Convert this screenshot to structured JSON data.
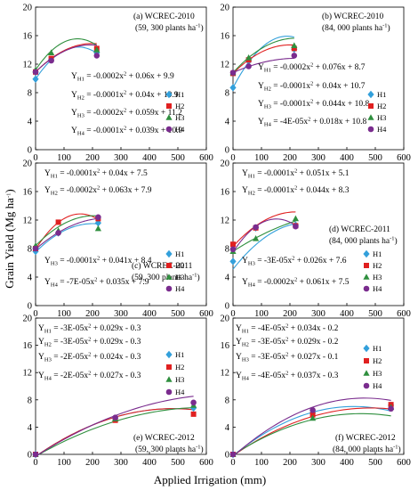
{
  "figure": {
    "xlabel": "Applied Irrigation (mm)",
    "ylabel": "Grain Yield (Mg ha-1)"
  },
  "colors": {
    "H1": "#33a0db",
    "H2": "#e02020",
    "H3": "#2f8f3e",
    "H4": "#7a2c8e"
  },
  "chart_data": [
    {
      "type": "scatter",
      "panel": "a",
      "title": "(a) WCREC-2010",
      "subtitle": "(59, 300 plants ha-1)",
      "xlim": [
        0,
        600
      ],
      "ylim": [
        0,
        20
      ],
      "xticks": [
        0,
        100,
        200,
        300,
        400,
        500,
        600
      ],
      "yticks": [
        0,
        4,
        8,
        12,
        16,
        20
      ],
      "legend_placement": "bottom-right",
      "equations": [
        "Y_H1 = -0.0002x2 + 0.06x + 9.9",
        "Y_H2 = -0.0001x2 + 0.04x + 10.9",
        "Y_H3 = -0.0002x2 + 0.059x + 11.2",
        "Y_H4 = -0.0001x2 + 0.039x + 10.9"
      ],
      "series": [
        {
          "name": "H1",
          "points": [
            [
              0,
              9.9
            ],
            [
              55,
              12.6
            ],
            [
              215,
              13.6
            ]
          ],
          "coef": [
            -0.0002,
            0.06,
            9.9
          ],
          "fit_range": [
            0,
            215
          ]
        },
        {
          "name": "H2",
          "points": [
            [
              0,
              10.9
            ],
            [
              55,
              12.8
            ],
            [
              215,
              14.2
            ]
          ],
          "coef": [
            -0.0001,
            0.04,
            10.9
          ],
          "fit_range": [
            0,
            215
          ]
        },
        {
          "name": "H3",
          "points": [
            [
              0,
              11.2
            ],
            [
              55,
              13.6
            ],
            [
              215,
              14.0
            ]
          ],
          "coef": [
            -0.0002,
            0.059,
            11.2
          ],
          "fit_range": [
            0,
            215
          ]
        },
        {
          "name": "H4",
          "points": [
            [
              0,
              10.9
            ],
            [
              55,
              12.5
            ],
            [
              215,
              13.2
            ]
          ],
          "coef": [
            -0.0001,
            0.039,
            10.9
          ],
          "fit_range": [
            0,
            215
          ]
        }
      ]
    },
    {
      "type": "scatter",
      "panel": "b",
      "title": "(b) WCREC-2010",
      "subtitle": "(84, 000 plants ha-1)",
      "xlim": [
        0,
        600
      ],
      "ylim": [
        0,
        20
      ],
      "xticks": [
        0,
        100,
        200,
        300,
        400,
        500,
        600
      ],
      "yticks": [
        0,
        4,
        8,
        12,
        16,
        20
      ],
      "legend_placement": "bottom-right",
      "equations": [
        "Y_H1 = -0.0002x2 + 0.076x + 8.7",
        "Y_H2 = -0.0001x2 + 0.04x + 10.7",
        "Y_H3 = -0.0001x2 + 0.044x + 10.8",
        "Y_H4 = -4E-05x2 + 0.018x + 10.8"
      ],
      "series": [
        {
          "name": "H1",
          "points": [
            [
              0,
              8.7
            ],
            [
              55,
              12.4
            ],
            [
              215,
              14.1
            ]
          ],
          "coef": [
            -0.0002,
            0.076,
            8.7
          ],
          "fit_range": [
            0,
            215
          ]
        },
        {
          "name": "H2",
          "points": [
            [
              0,
              10.7
            ],
            [
              55,
              12.6
            ],
            [
              215,
              14.2
            ]
          ],
          "coef": [
            -0.0001,
            0.04,
            10.7
          ],
          "fit_range": [
            0,
            215
          ]
        },
        {
          "name": "H3",
          "points": [
            [
              0,
              10.8
            ],
            [
              55,
              12.9
            ],
            [
              215,
              14.6
            ]
          ],
          "coef": [
            -0.0001,
            0.044,
            10.8
          ],
          "fit_range": [
            0,
            215
          ]
        },
        {
          "name": "H4",
          "points": [
            [
              0,
              10.8
            ],
            [
              55,
              11.7
            ],
            [
              215,
              13.2
            ]
          ],
          "coef": [
            -4e-05,
            0.018,
            10.8
          ],
          "fit_range": [
            0,
            215
          ]
        }
      ]
    },
    {
      "type": "scatter",
      "panel": "c",
      "title": "(c) WCREC-2011",
      "subtitle": "(59, 300 plants ha-1)",
      "xlim": [
        0,
        600
      ],
      "ylim": [
        0,
        20
      ],
      "xticks": [
        0,
        100,
        200,
        300,
        400,
        500,
        600
      ],
      "yticks": [
        0,
        4,
        8,
        12,
        16,
        20
      ],
      "legend_placement": "bottom-right",
      "equations": [
        "Y_H1 = -0.0001x2 + 0.04x + 7.5",
        "Y_H2 = -0.0002x2 + 0.063x + 7.9",
        "Y_H3 = -0.0001x2 + 0.041x + 8.4",
        "Y_H4 = -7E-05x2 + 0.035x + 7.9"
      ],
      "series": [
        {
          "name": "H1",
          "points": [
            [
              0,
              7.6
            ],
            [
              80,
              10.2
            ],
            [
              220,
              11.6
            ]
          ],
          "coef": [
            -0.0001,
            0.04,
            7.5
          ],
          "fit_range": [
            0,
            220
          ]
        },
        {
          "name": "H2",
          "points": [
            [
              0,
              8.0
            ],
            [
              80,
              11.7
            ],
            [
              220,
              12.2
            ]
          ],
          "coef": [
            -0.0002,
            0.063,
            7.9
          ],
          "fit_range": [
            0,
            220
          ]
        },
        {
          "name": "H3",
          "points": [
            [
              0,
              8.4
            ],
            [
              80,
              10.5
            ],
            [
              220,
              10.8
            ]
          ],
          "coef": [
            -0.0001,
            0.041,
            8.4
          ],
          "fit_range": [
            0,
            220
          ]
        },
        {
          "name": "H4",
          "points": [
            [
              0,
              8.0
            ],
            [
              80,
              10.2
            ],
            [
              220,
              12.4
            ]
          ],
          "coef": [
            -7e-05,
            0.035,
            7.9
          ],
          "fit_range": [
            0,
            220
          ]
        }
      ]
    },
    {
      "type": "scatter",
      "panel": "d",
      "title": "(d) WCREC-2011",
      "subtitle": "(84, 000 plants ha-1)",
      "xlim": [
        0,
        600
      ],
      "ylim": [
        0,
        20
      ],
      "xticks": [
        0,
        100,
        200,
        300,
        400,
        500,
        600
      ],
      "yticks": [
        0,
        4,
        8,
        12,
        16,
        20
      ],
      "legend_placement": "bottom-right",
      "equations": [
        "Y_H1 = -0.0001x2 + 0.051x + 5.1",
        "Y_H2 = -0.0001x2 + 0.044x + 8.3",
        "Y_H3 = -3E-05x2 + 0.026x + 7.6",
        "Y_H4 = -0.0002x2 + 0.061x + 7.5"
      ],
      "series": [
        {
          "name": "H1",
          "points": [
            [
              0,
              6.2
            ],
            [
              80,
              10.9
            ],
            [
              220,
              11.3
            ]
          ],
          "coef": [
            -0.0001,
            0.051,
            5.1
          ],
          "fit_range": [
            0,
            220
          ]
        },
        {
          "name": "H2",
          "points": [
            [
              0,
              8.6
            ],
            [
              80,
              10.9
            ],
            [
              220,
              11.2
            ]
          ],
          "coef": [
            -0.0001,
            0.044,
            8.3
          ],
          "fit_range": [
            0,
            220
          ]
        },
        {
          "name": "H3",
          "points": [
            [
              0,
              7.6
            ],
            [
              80,
              9.4
            ],
            [
              220,
              12.2
            ]
          ],
          "coef": [
            -3e-05,
            0.026,
            7.6
          ],
          "fit_range": [
            0,
            220
          ]
        },
        {
          "name": "H4",
          "points": [
            [
              0,
              7.9
            ],
            [
              80,
              11.0
            ],
            [
              220,
              11.1
            ]
          ],
          "coef": [
            -0.0002,
            0.061,
            7.5
          ],
          "fit_range": [
            0,
            220
          ]
        }
      ]
    },
    {
      "type": "scatter",
      "panel": "e",
      "title": "(e) WCREC-2012",
      "subtitle": "(59, 300 plants ha-1)",
      "xlim": [
        0,
        600
      ],
      "ylim": [
        0,
        20
      ],
      "xticks": [
        0,
        100,
        200,
        300,
        400,
        500,
        600
      ],
      "yticks": [
        0,
        4,
        8,
        12,
        16,
        20
      ],
      "legend_placement": "middle-right",
      "equations": [
        "Y_H1 = -3E-05x2 + 0.029x - 0.3",
        "Y_H2 = -3E-05x2 + 0.029x - 0.3",
        "Y_H3 = -2E-05x2 + 0.024x - 0.3",
        "Y_H4 = -2E-05x2 + 0.027x - 0.3"
      ],
      "series": [
        {
          "name": "H1",
          "points": [
            [
              0,
              0.0
            ],
            [
              280,
              5.3
            ],
            [
              555,
              6.8
            ]
          ],
          "coef": [
            -3e-05,
            0.029,
            -0.3
          ],
          "fit_range": [
            0,
            555
          ]
        },
        {
          "name": "H2",
          "points": [
            [
              0,
              0.0
            ],
            [
              280,
              5.0
            ],
            [
              555,
              5.9
            ]
          ],
          "coef": [
            -3e-05,
            0.029,
            -0.3
          ],
          "fit_range": [
            0,
            555
          ]
        },
        {
          "name": "H3",
          "points": [
            [
              0,
              0.0
            ],
            [
              280,
              5.2
            ],
            [
              555,
              7.2
            ]
          ],
          "coef": [
            -2e-05,
            0.024,
            -0.3
          ],
          "fit_range": [
            0,
            555
          ]
        },
        {
          "name": "H4",
          "points": [
            [
              0,
              0.0
            ],
            [
              280,
              5.4
            ],
            [
              555,
              7.6
            ]
          ],
          "coef": [
            -2e-05,
            0.027,
            -0.3
          ],
          "fit_range": [
            0,
            555
          ]
        }
      ]
    },
    {
      "type": "scatter",
      "panel": "f",
      "title": "(f) WCREC-2012",
      "subtitle": "(84, 000 plants ha-1)",
      "xlim": [
        0,
        600
      ],
      "ylim": [
        0,
        20
      ],
      "xticks": [
        0,
        100,
        200,
        300,
        400,
        500,
        600
      ],
      "yticks": [
        0,
        4,
        8,
        12,
        16,
        20
      ],
      "legend_placement": "middle-right",
      "equations": [
        "Y_H1 = -4E-05x2 + 0.034x - 0.2",
        "Y_H2 = -3E-05x2 + 0.029x - 0.2",
        "Y_H3 = -3E-05x2 + 0.027x - 0.1",
        "Y_H4 = -4E-05x2 + 0.037x - 0.3"
      ],
      "series": [
        {
          "name": "H1",
          "points": [
            [
              0,
              0.0
            ],
            [
              280,
              6.1
            ],
            [
              555,
              7.2
            ]
          ],
          "coef": [
            -4e-05,
            0.034,
            -0.2
          ],
          "fit_range": [
            0,
            555
          ]
        },
        {
          "name": "H2",
          "points": [
            [
              0,
              0.0
            ],
            [
              280,
              5.8
            ],
            [
              555,
              7.3
            ]
          ],
          "coef": [
            -3e-05,
            0.029,
            -0.2
          ],
          "fit_range": [
            0,
            555
          ]
        },
        {
          "name": "H3",
          "points": [
            [
              0,
              0.0
            ],
            [
              280,
              5.3
            ],
            [
              555,
              6.9
            ]
          ],
          "coef": [
            -3e-05,
            0.027,
            -0.1
          ],
          "fit_range": [
            0,
            555
          ]
        },
        {
          "name": "H4",
          "points": [
            [
              0,
              0.0
            ],
            [
              280,
              6.5
            ],
            [
              555,
              6.7
            ]
          ],
          "coef": [
            -4e-05,
            0.037,
            -0.3
          ],
          "fit_range": [
            0,
            555
          ]
        }
      ]
    }
  ]
}
